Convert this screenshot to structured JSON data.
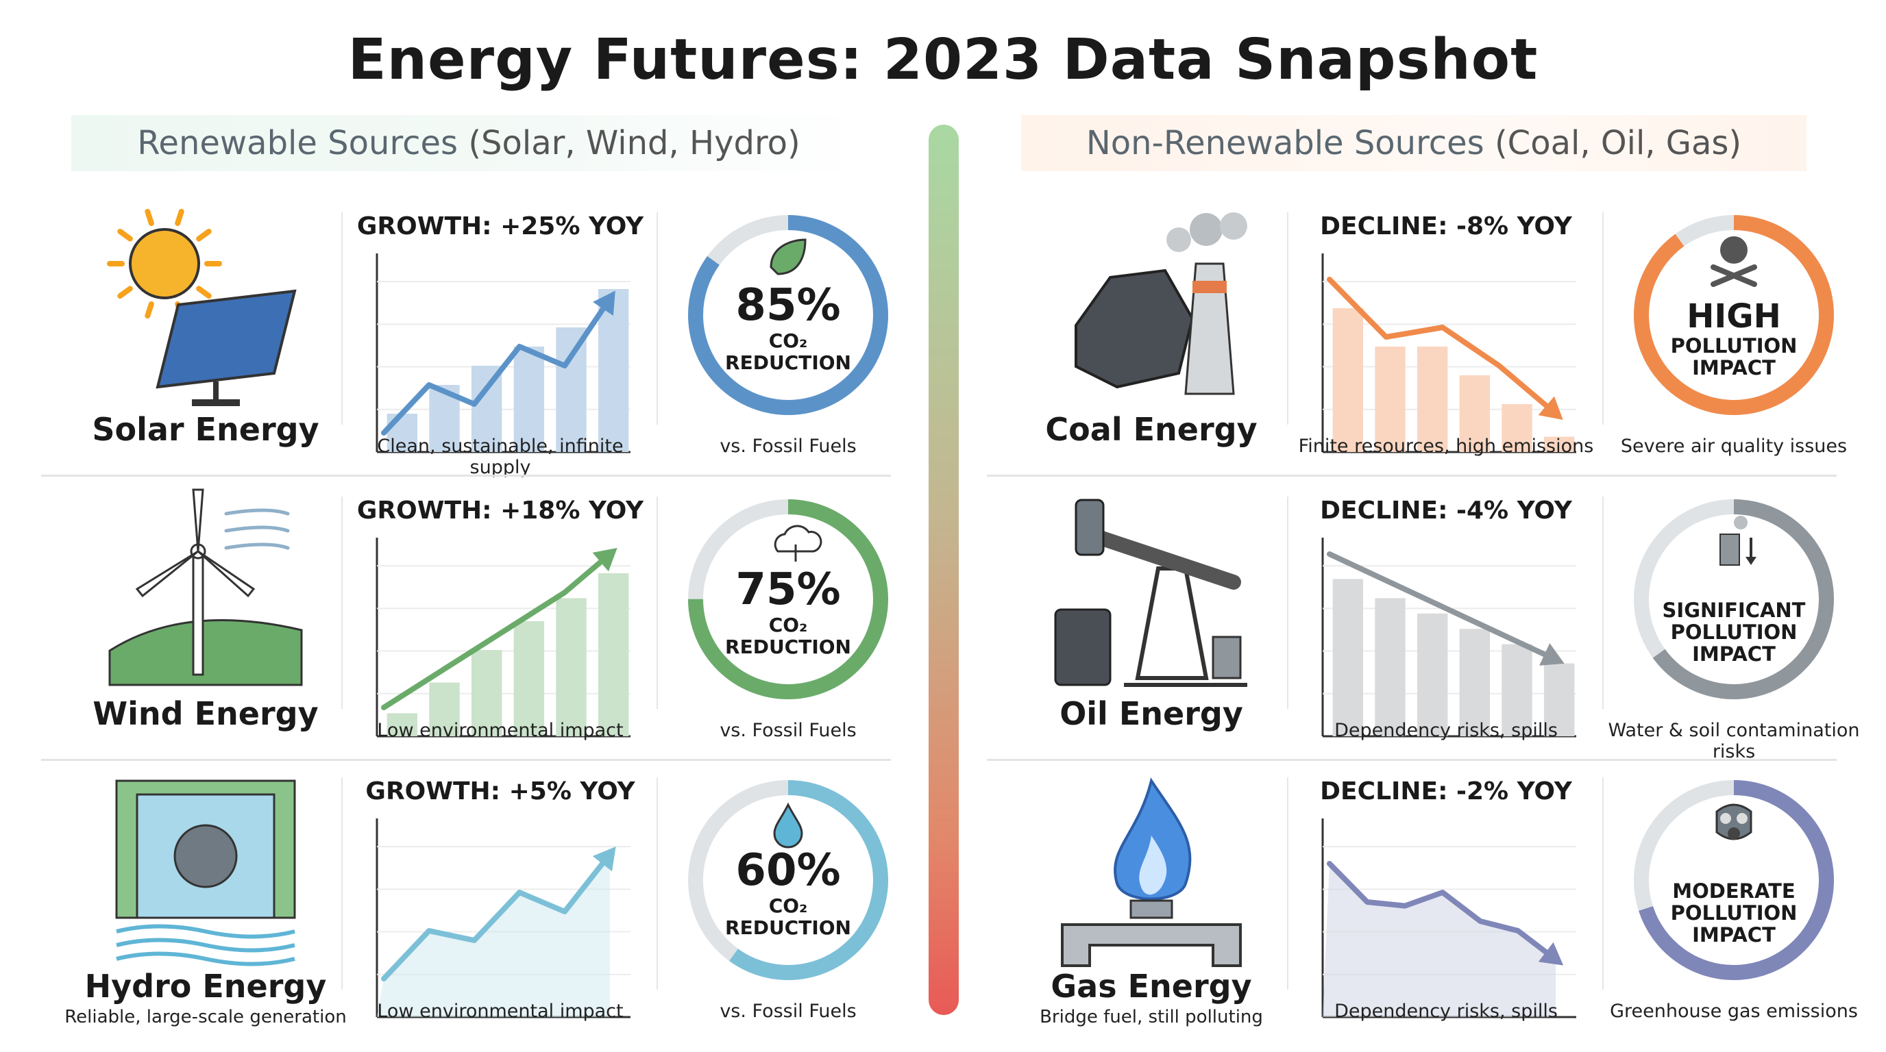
{
  "title": "Energy Futures: 2023 Data Snapshot",
  "renewable_header": {
    "bold": "Renewable Sources",
    "rest": "(Solar, Wind, Hydro)"
  },
  "nonrenewable_header": {
    "bold": "Non-Renewable Sources",
    "rest": "(Coal, Oil, Gas)"
  },
  "colors": {
    "solar": "#5b93c9",
    "wind": "#6aab6a",
    "hydro": "#7cc0d8",
    "coal": "#f08a4b",
    "oil": "#8f969c",
    "gas": "#7f86b8"
  },
  "renewables": [
    {
      "name": "Solar Energy",
      "sub": "",
      "trend": "GROWTH: +25% YOY",
      "caption": "Clean, sustainable, infinite supply",
      "pct": "85%",
      "pct_value": 85,
      "co2": "CO₂",
      "reduction": "REDUCTION",
      "vs": "vs. Fossil Fuels",
      "icon": "solar-panel-icon",
      "ring_icon": "leaf-icon",
      "chart_data": {
        "type": "bar",
        "title": "GROWTH: +25% YOY",
        "values": [
          20,
          35,
          45,
          55,
          65,
          85
        ],
        "line": [
          10,
          35,
          25,
          55,
          45,
          80
        ],
        "ylim": [
          0,
          100
        ]
      }
    },
    {
      "name": "Wind Energy",
      "sub": "",
      "trend": "GROWTH: +18% YOY",
      "caption": "Low environmental impact",
      "pct": "75%",
      "pct_value": 75,
      "co2": "CO₂",
      "reduction": "REDUCTION",
      "vs": "vs. Fossil Fuels",
      "icon": "wind-turbine-icon",
      "ring_icon": "cloud-icon",
      "chart_data": {
        "type": "bar",
        "title": "GROWTH: +18% YOY",
        "values": [
          12,
          28,
          45,
          60,
          72,
          85
        ],
        "line": [
          15,
          30,
          45,
          60,
          75,
          95
        ],
        "ylim": [
          0,
          100
        ]
      }
    },
    {
      "name": "Hydro Energy",
      "sub": "Reliable, large-scale generation",
      "trend": "GROWTH: +5% YOY",
      "caption": "Low environmental impact",
      "pct": "60%",
      "pct_value": 60,
      "co2": "CO₂",
      "reduction": "REDUCTION",
      "vs": "vs. Fossil Fuels",
      "icon": "hydro-dam-icon",
      "ring_icon": "water-drop-icon",
      "chart_data": {
        "type": "area",
        "title": "GROWTH: +5% YOY",
        "line": [
          20,
          45,
          40,
          65,
          55,
          85
        ],
        "ylim": [
          0,
          100
        ]
      }
    }
  ],
  "nonrenewables": [
    {
      "name": "Coal Energy",
      "sub": "",
      "trend": "DECLINE: -8% YOY",
      "caption": "Finite resources, high emissions",
      "impact": [
        "HIGH",
        "POLLUTION",
        "IMPACT"
      ],
      "impact_caption": "Severe air quality issues",
      "fill_value": 90,
      "icon": "coal-plant-icon",
      "ring_icon": "skull-icon",
      "chart_data": {
        "type": "bar",
        "title": "DECLINE: -8% YOY",
        "values": [
          75,
          55,
          55,
          40,
          25,
          8
        ],
        "line": [
          90,
          60,
          65,
          45,
          20
        ],
        "ylim": [
          0,
          100
        ]
      }
    },
    {
      "name": "Oil Energy",
      "sub": "",
      "trend": "DECLINE: -4% YOY",
      "caption": "Dependency risks, spills",
      "impact": [
        "SIGNIFICANT",
        "POLLUTION",
        "IMPACT"
      ],
      "impact_caption": "Water & soil contamination risks",
      "fill_value": 65,
      "icon": "oil-pump-icon",
      "ring_icon": "factory-icon",
      "chart_data": {
        "type": "bar",
        "title": "DECLINE: -4% YOY",
        "values": [
          82,
          72,
          64,
          56,
          48,
          38
        ],
        "line": [
          95,
          40
        ],
        "ylim": [
          0,
          100
        ]
      }
    },
    {
      "name": "Gas Energy",
      "sub": "Bridge fuel, still polluting",
      "trend": "DECLINE: -2% YOY",
      "caption": "Dependency risks, spills",
      "impact": [
        "MODERATE",
        "POLLUTION",
        "IMPACT"
      ],
      "impact_caption": "Greenhouse gas emissions",
      "fill_value": 70,
      "icon": "gas-flame-icon",
      "ring_icon": "gas-mask-icon",
      "chart_data": {
        "type": "area",
        "title": "DECLINE: -2% YOY",
        "line": [
          80,
          60,
          58,
          65,
          50,
          45,
          30
        ],
        "ylim": [
          0,
          100
        ]
      }
    }
  ]
}
